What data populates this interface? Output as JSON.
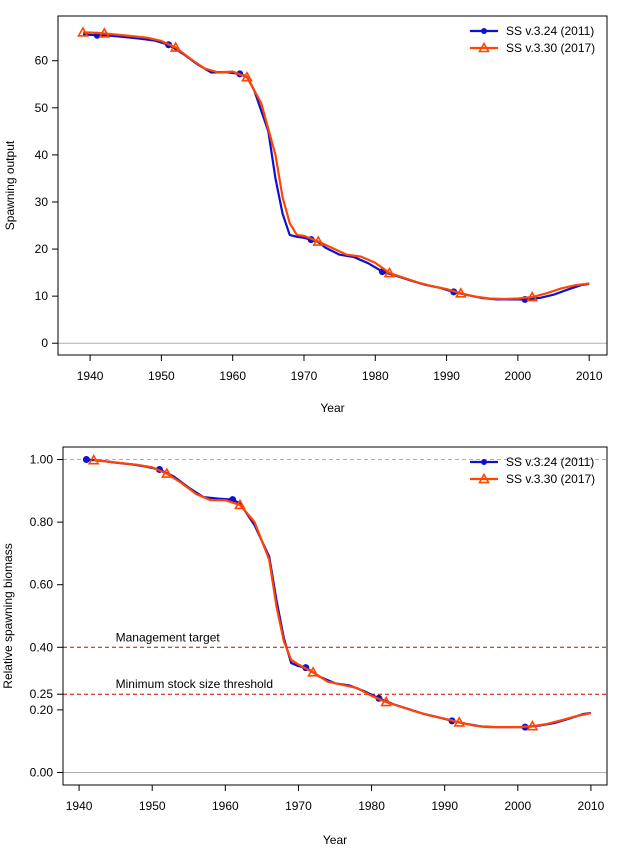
{
  "colors": {
    "series_blue": "#1010d0",
    "series_red": "#ff4500",
    "ref_red": "#d40000",
    "ref_gray": "#b0b0b0"
  },
  "chart_data": [
    {
      "type": "line",
      "title": "",
      "xlabel": "Year",
      "ylabel": "Spawning output",
      "xlim": [
        1935.5,
        2012.5
      ],
      "ylim": [
        -2.5,
        69.5
      ],
      "xticks": [
        1940,
        1950,
        1960,
        1970,
        1980,
        1990,
        2000,
        2010
      ],
      "yticks": [
        0,
        10,
        20,
        30,
        40,
        50,
        60
      ],
      "ytick_labels": [
        "0",
        "10",
        "20",
        "30",
        "40",
        "50",
        "60"
      ],
      "grid": false,
      "legend_position": "top-right",
      "reference_lines": [
        {
          "y": 0,
          "style": "solid",
          "color": "gray",
          "label": ""
        }
      ],
      "series": [
        {
          "name": "SS v.3.24 (2011)",
          "color": "blue",
          "marker": "circle",
          "x": [
            1939,
            1941,
            1943,
            1945,
            1947,
            1949,
            1951,
            1953,
            1955,
            1957,
            1959,
            1961,
            1962,
            1963,
            1965,
            1966,
            1967,
            1968,
            1969,
            1970,
            1971,
            1972,
            1973,
            1975,
            1977,
            1979,
            1981,
            1983,
            1985,
            1987,
            1989,
            1991,
            1993,
            1995,
            1997,
            1999,
            2001,
            2003,
            2005,
            2007,
            2009,
            2010
          ],
          "y": [
            65.6,
            65.4,
            65.3,
            65,
            64.7,
            64.3,
            63.4,
            61.5,
            59.3,
            57.5,
            57.6,
            57.2,
            56.6,
            53.8,
            45,
            35,
            27.5,
            23,
            22.6,
            22.4,
            22,
            21.5,
            20.3,
            18.8,
            18.3,
            17,
            15.2,
            14.3,
            13.3,
            12.4,
            11.8,
            10.9,
            10.2,
            9.6,
            9.3,
            9.3,
            9.3,
            9.6,
            10.3,
            11.4,
            12.4,
            12.6
          ],
          "marker_x": [
            1941,
            1951,
            1961,
            1971,
            1981,
            1991,
            2001
          ]
        },
        {
          "name": "SS v.3.30 (2017)",
          "color": "red",
          "marker": "triangle",
          "x": [
            1939,
            1940,
            1942,
            1944,
            1946,
            1948,
            1950,
            1952,
            1954,
            1956,
            1958,
            1960,
            1962,
            1964,
            1966,
            1967,
            1968,
            1969,
            1970,
            1972,
            1974,
            1976,
            1978,
            1980,
            1982,
            1984,
            1986,
            1988,
            1990,
            1992,
            1994,
            1996,
            1998,
            2000,
            2002,
            2004,
            2006,
            2008,
            2010
          ],
          "y": [
            66,
            66,
            65.8,
            65.5,
            65.2,
            64.9,
            64.2,
            62.8,
            60.5,
            58.4,
            57.5,
            57.7,
            56.5,
            51,
            40,
            31,
            25.5,
            23,
            22.8,
            21.6,
            20.2,
            18.8,
            18.4,
            17.1,
            14.9,
            13.9,
            12.9,
            12.1,
            11.5,
            10.6,
            9.9,
            9.5,
            9.4,
            9.5,
            9.8,
            10.6,
            11.6,
            12.3,
            12.7
          ],
          "marker_x": [
            1939,
            1942,
            1952,
            1962,
            1972,
            1982,
            1992,
            2002
          ]
        }
      ]
    },
    {
      "type": "line",
      "title": "",
      "xlabel": "Year",
      "ylabel": "Relative spawning biomass",
      "xlim": [
        1937.8,
        2012.2
      ],
      "ylim": [
        -0.04,
        1.04
      ],
      "xticks": [
        1940,
        1950,
        1960,
        1970,
        1980,
        1990,
        2000,
        2010
      ],
      "yticks": [
        0,
        0.2,
        0.25,
        0.4,
        0.6,
        0.8,
        1.0
      ],
      "ytick_labels": [
        "0.00",
        "0.20",
        "0.25",
        "0.40",
        "0.60",
        "0.80",
        "1.00"
      ],
      "grid": false,
      "legend_position": "top-right",
      "reference_lines": [
        {
          "y": 1.0,
          "style": "dashed",
          "color": "gray",
          "label": ""
        },
        {
          "y": 0.4,
          "style": "dashed",
          "color": "red",
          "label": "Management target",
          "label_x": 1945
        },
        {
          "y": 0.25,
          "style": "dashed",
          "color": "red",
          "label": "Minimum stock size threshold",
          "label_x": 1945
        },
        {
          "y": 0,
          "style": "solid",
          "color": "gray",
          "label": ""
        }
      ],
      "series": [
        {
          "name": "SS v.3.24 (2011)",
          "color": "blue",
          "marker": "circle",
          "x": [
            1941,
            1943,
            1945,
            1947,
            1949,
            1951,
            1953,
            1955,
            1957,
            1959,
            1961,
            1962,
            1964,
            1966,
            1967,
            1968,
            1969,
            1970,
            1971,
            1972,
            1973,
            1975,
            1977,
            1979,
            1981,
            1983,
            1985,
            1987,
            1989,
            1991,
            1993,
            1995,
            1997,
            1999,
            2001,
            2003,
            2005,
            2007,
            2009,
            2010
          ],
          "y": [
            1,
            0.996,
            0.99,
            0.985,
            0.978,
            0.968,
            0.945,
            0.91,
            0.88,
            0.875,
            0.872,
            0.86,
            0.79,
            0.69,
            0.55,
            0.43,
            0.35,
            0.34,
            0.335,
            0.32,
            0.305,
            0.285,
            0.278,
            0.26,
            0.237,
            0.218,
            0.203,
            0.188,
            0.177,
            0.165,
            0.155,
            0.147,
            0.145,
            0.145,
            0.145,
            0.15,
            0.158,
            0.172,
            0.187,
            0.19
          ],
          "marker_x": [
            1941,
            1951,
            1961,
            1971,
            1981,
            1991,
            2001
          ]
        },
        {
          "name": "SS v.3.30 (2017)",
          "color": "red",
          "marker": "triangle",
          "x": [
            1942,
            1944,
            1946,
            1948,
            1950,
            1952,
            1954,
            1956,
            1958,
            1960,
            1962,
            1964,
            1966,
            1967,
            1968,
            1969,
            1970,
            1972,
            1974,
            1976,
            1978,
            1980,
            1982,
            1984,
            1986,
            1988,
            1990,
            1992,
            1994,
            1996,
            1998,
            2000,
            2002,
            2004,
            2006,
            2008,
            2010
          ],
          "y": [
            0.998,
            0.993,
            0.988,
            0.983,
            0.975,
            0.955,
            0.925,
            0.89,
            0.87,
            0.87,
            0.855,
            0.8,
            0.68,
            0.53,
            0.42,
            0.36,
            0.345,
            0.32,
            0.29,
            0.28,
            0.27,
            0.245,
            0.225,
            0.21,
            0.195,
            0.182,
            0.172,
            0.16,
            0.15,
            0.145,
            0.145,
            0.145,
            0.148,
            0.155,
            0.167,
            0.18,
            0.19
          ],
          "marker_x": [
            1942,
            1952,
            1962,
            1972,
            1982,
            1992,
            2002
          ]
        }
      ]
    }
  ]
}
